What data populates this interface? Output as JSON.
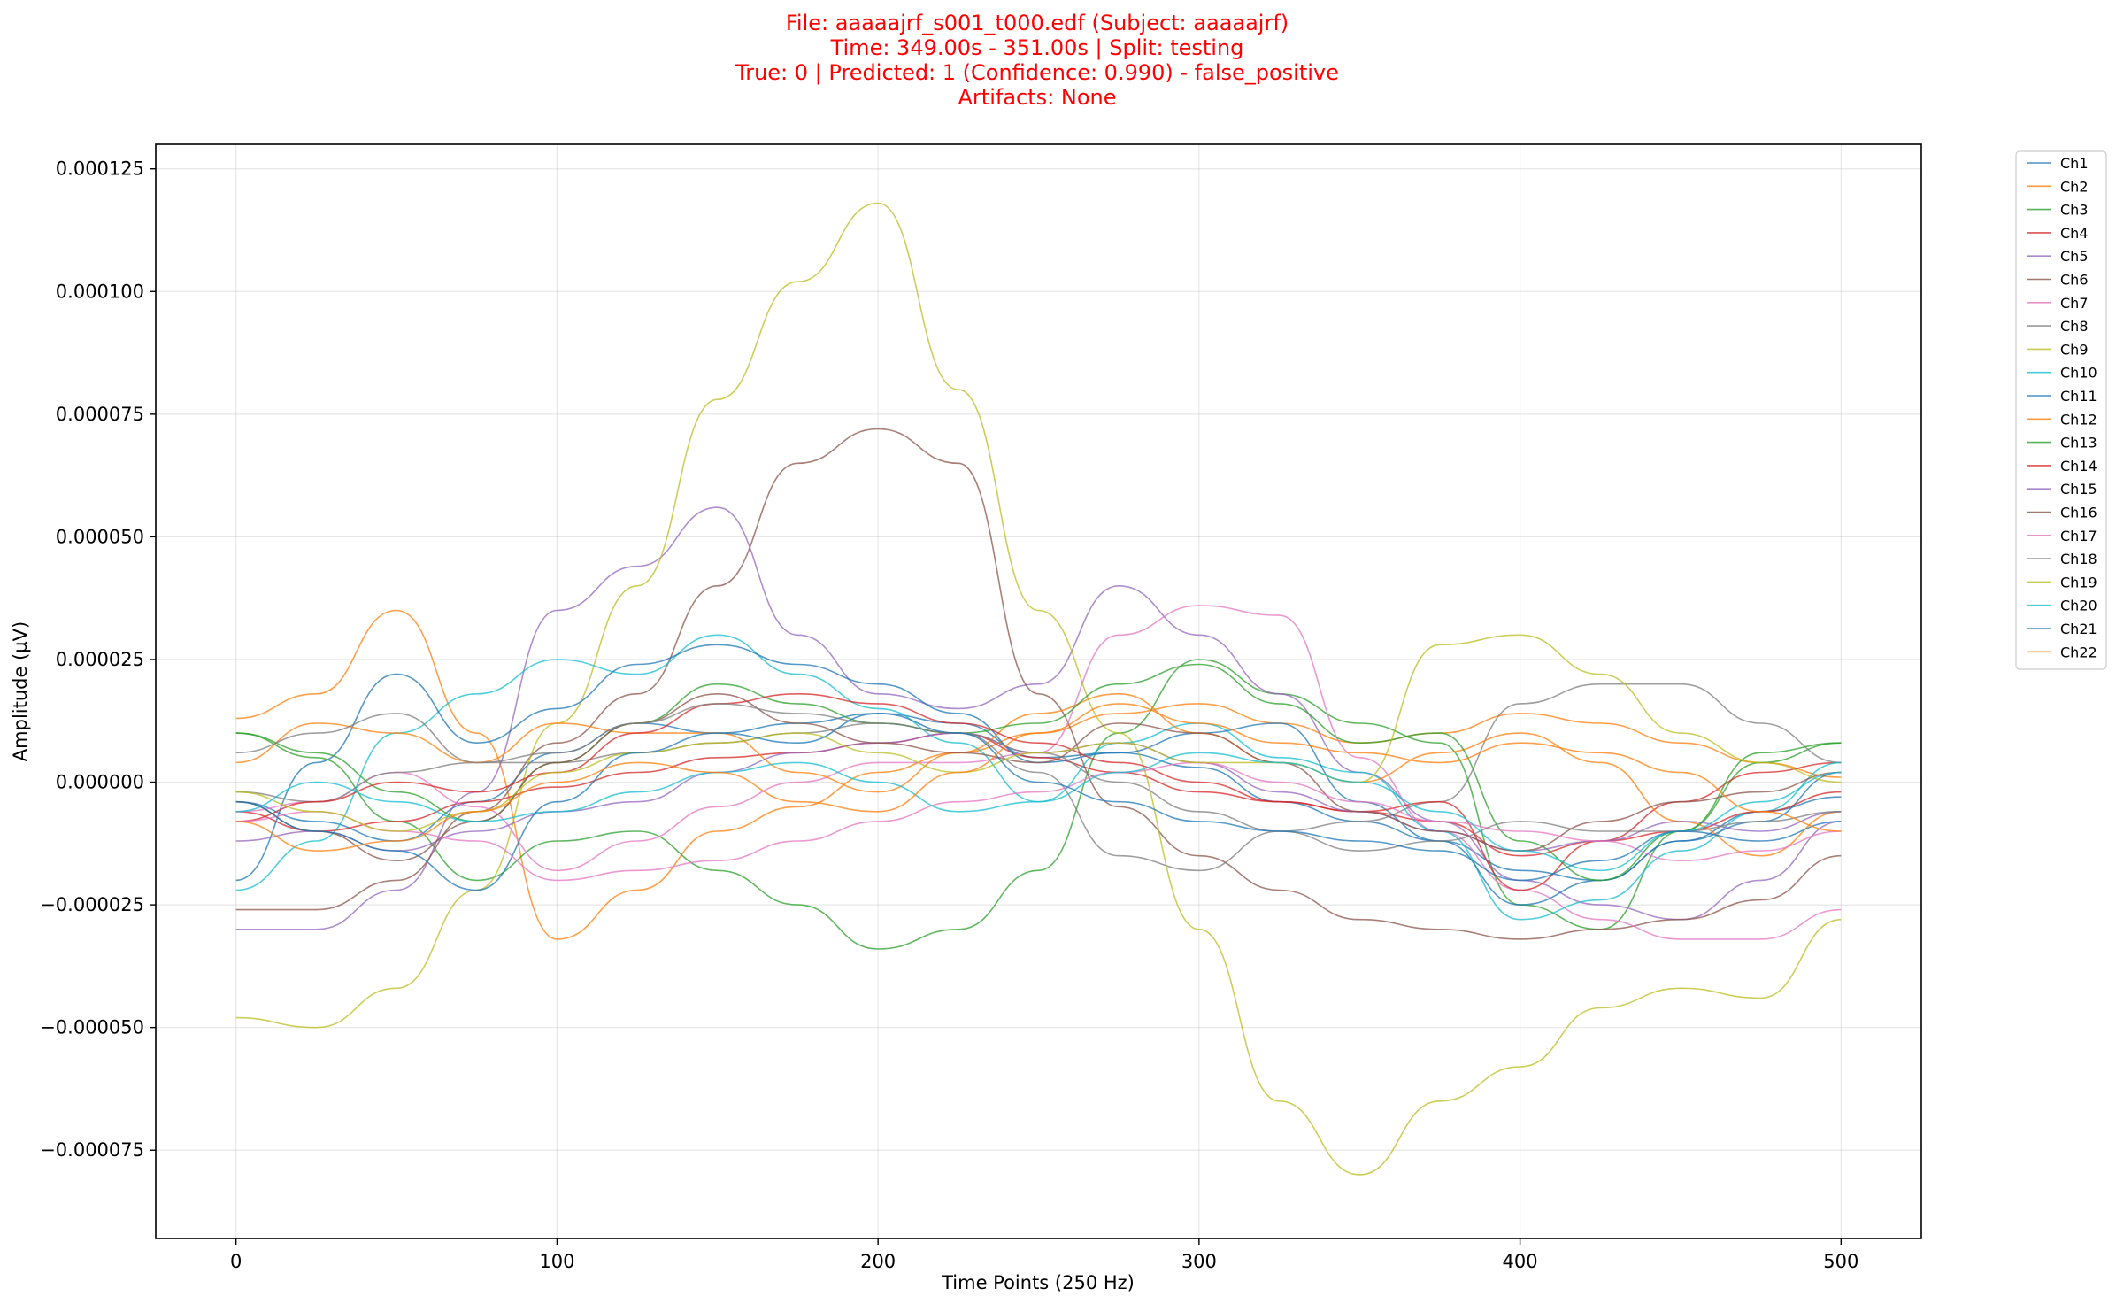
{
  "chart_data": {
    "type": "line",
    "title_lines": [
      "File: aaaaajrf_s001_t000.edf (Subject: aaaaajrf)",
      "Time: 349.00s - 351.00s | Split: testing",
      "True: 0 | Predicted: 1 (Confidence: 0.990) - false_positive",
      "Artifacts: None"
    ],
    "title_color": "#ff0000",
    "xlabel": "Time Points (250 Hz)",
    "ylabel": "Amplitude (µV)",
    "xlim": [
      -25,
      525
    ],
    "ylim": [
      -9.3e-05,
      0.00013
    ],
    "xticks": [
      0,
      100,
      200,
      300,
      400,
      500
    ],
    "xtick_labels": [
      "0",
      "100",
      "200",
      "300",
      "400",
      "500"
    ],
    "yticks": [
      -7.5e-05,
      -5e-05,
      -2.5e-05,
      0,
      2.5e-05,
      5e-05,
      7.5e-05,
      0.0001,
      0.000125
    ],
    "ytick_labels": [
      "−0.000075",
      "−0.000050",
      "−0.000025",
      "0.000000",
      "0.000025",
      "0.000050",
      "0.000075",
      "0.000100",
      "0.000125"
    ],
    "grid": true,
    "legend_position": "outside-top-right",
    "x": [
      0,
      25,
      50,
      75,
      100,
      125,
      150,
      175,
      200,
      225,
      250,
      275,
      300,
      325,
      350,
      375,
      400,
      425,
      450,
      475,
      500
    ],
    "series": [
      {
        "name": "Ch1",
        "color": "#1f77b4",
        "values": [
          -4e-06,
          -8e-06,
          -1.2e-05,
          -4e-06,
          6e-06,
          1.2e-05,
          1e-05,
          1.2e-05,
          1.4e-05,
          1.2e-05,
          5e-06,
          6e-06,
          3e-06,
          -4e-06,
          -8e-06,
          -1.2e-05,
          -1.8e-05,
          -2e-05,
          -1.2e-05,
          -6e-06,
          -3e-06
        ]
      },
      {
        "name": "Ch2",
        "color": "#ff7f0e",
        "values": [
          1.3e-05,
          1.8e-05,
          3.5e-05,
          1e-05,
          -3.2e-05,
          -2.2e-05,
          -1e-05,
          -5e-06,
          2e-06,
          6e-06,
          1e-05,
          1.4e-05,
          1.6e-05,
          1.2e-05,
          8e-06,
          1e-05,
          1.4e-05,
          1.2e-05,
          8e-06,
          4e-06,
          1e-06
        ]
      },
      {
        "name": "Ch3",
        "color": "#2ca02c",
        "values": [
          1e-05,
          5e-06,
          -8e-06,
          -2e-05,
          -1.2e-05,
          -1e-05,
          -1.8e-05,
          -2.5e-05,
          -3.4e-05,
          -3e-05,
          -1.8e-05,
          1e-05,
          2.5e-05,
          1.8e-05,
          1.2e-05,
          8e-06,
          -2.5e-05,
          -3e-05,
          -1e-05,
          4e-06,
          8e-06
        ]
      },
      {
        "name": "Ch4",
        "color": "#d62728",
        "values": [
          -6e-06,
          -1e-05,
          -8e-06,
          -4e-06,
          -1e-06,
          2e-06,
          5e-06,
          6e-06,
          8e-06,
          1e-05,
          5e-06,
          2e-06,
          -2e-06,
          -4e-06,
          -6e-06,
          -8e-06,
          -1.5e-05,
          -1.2e-05,
          -4e-06,
          2e-06,
          4e-06
        ]
      },
      {
        "name": "Ch5",
        "color": "#9467bd",
        "values": [
          -3e-05,
          -3e-05,
          -2.2e-05,
          -2e-06,
          3.5e-05,
          4.4e-05,
          5.6e-05,
          3e-05,
          1.8e-05,
          1.5e-05,
          2e-05,
          4e-05,
          3e-05,
          1.8e-05,
          2e-06,
          -8e-06,
          -2e-05,
          -2.5e-05,
          -2.8e-05,
          -2e-05,
          -8e-06
        ]
      },
      {
        "name": "Ch6",
        "color": "#8c564b",
        "values": [
          -2.6e-05,
          -2.6e-05,
          -2e-05,
          -6e-06,
          8e-06,
          1.8e-05,
          4e-05,
          6.5e-05,
          7.2e-05,
          6.5e-05,
          1.8e-05,
          -5e-06,
          -1.5e-05,
          -2.2e-05,
          -2.8e-05,
          -3e-05,
          -3.2e-05,
          -3e-05,
          -2.8e-05,
          -2.4e-05,
          -1.5e-05
        ]
      },
      {
        "name": "Ch7",
        "color": "#e377c2",
        "values": [
          -6e-06,
          -4e-06,
          2e-06,
          -5e-06,
          -1.8e-05,
          -1.2e-05,
          -5e-06,
          0.0,
          4e-06,
          4e-06,
          6e-06,
          3e-05,
          3.6e-05,
          3.4e-05,
          5e-06,
          -1e-05,
          -2.2e-05,
          -2.8e-05,
          -3.2e-05,
          -3.2e-05,
          -2.6e-05
        ]
      },
      {
        "name": "Ch8",
        "color": "#7f7f7f",
        "values": [
          -2e-06,
          -4e-06,
          2e-06,
          4e-06,
          4e-06,
          6e-06,
          8e-06,
          1e-05,
          1.2e-05,
          1e-05,
          2e-06,
          -1.5e-05,
          -1.8e-05,
          -1e-05,
          -8e-06,
          -4e-06,
          1.6e-05,
          2e-05,
          2e-05,
          1.2e-05,
          4e-06
        ]
      },
      {
        "name": "Ch9",
        "color": "#bcbd22",
        "values": [
          -4.8e-05,
          -5e-05,
          -4.2e-05,
          -2.2e-05,
          1.2e-05,
          4e-05,
          7.8e-05,
          0.000102,
          0.000118,
          8e-05,
          3.5e-05,
          1e-05,
          -3e-05,
          -6.5e-05,
          -8e-05,
          -6.5e-05,
          -5.8e-05,
          -4.6e-05,
          -4.2e-05,
          -4.4e-05,
          -2.8e-05
        ]
      },
      {
        "name": "Ch10",
        "color": "#17becf",
        "values": [
          -2.2e-05,
          -1.2e-05,
          1e-05,
          1.8e-05,
          2.5e-05,
          2.2e-05,
          3e-05,
          2.2e-05,
          1.5e-05,
          8e-06,
          -4e-06,
          8e-06,
          1.2e-05,
          5e-06,
          2e-06,
          -1e-05,
          -2.8e-05,
          -2.4e-05,
          -1.4e-05,
          -6e-06,
          4e-06
        ]
      },
      {
        "name": "Ch11",
        "color": "#1f77b4",
        "values": [
          -2e-05,
          4e-06,
          2.2e-05,
          8e-06,
          1.5e-05,
          2.4e-05,
          2.8e-05,
          2.4e-05,
          2e-05,
          1.4e-05,
          4e-06,
          6e-06,
          1e-05,
          1.2e-05,
          -4e-06,
          -1.2e-05,
          -2.5e-05,
          -2e-05,
          -1.2e-05,
          -8e-06,
          2e-06
        ]
      },
      {
        "name": "Ch12",
        "color": "#ff7f0e",
        "values": [
          4e-06,
          1.2e-05,
          1e-05,
          4e-06,
          1.2e-05,
          1e-05,
          1e-05,
          2e-06,
          -2e-06,
          6e-06,
          1.4e-05,
          1.8e-05,
          1e-05,
          4e-06,
          0.0,
          6e-06,
          1e-05,
          4e-06,
          -8e-06,
          -1.5e-05,
          -6e-06
        ]
      },
      {
        "name": "Ch13",
        "color": "#2ca02c",
        "values": [
          1e-05,
          6e-06,
          -2e-06,
          -8e-06,
          4e-06,
          1.2e-05,
          2e-05,
          1.6e-05,
          1.2e-05,
          1e-05,
          1.2e-05,
          2e-05,
          2.4e-05,
          1.6e-05,
          8e-06,
          1e-05,
          -1.2e-05,
          -2e-05,
          -1e-05,
          6e-06,
          8e-06
        ]
      },
      {
        "name": "Ch14",
        "color": "#d62728",
        "values": [
          -8e-06,
          -4e-06,
          0.0,
          -2e-06,
          2e-06,
          1e-05,
          1.6e-05,
          1.8e-05,
          1.6e-05,
          1.2e-05,
          8e-06,
          4e-06,
          0.0,
          -4e-06,
          -6e-06,
          -4e-06,
          -2.2e-05,
          -1.2e-05,
          -1e-05,
          -6e-06,
          -2e-06
        ]
      },
      {
        "name": "Ch15",
        "color": "#9467bd",
        "values": [
          -1.2e-05,
          -1e-05,
          -1.4e-05,
          -1e-05,
          -6e-06,
          -4e-06,
          2e-06,
          6e-06,
          8e-06,
          1e-05,
          6e-06,
          8e-06,
          4e-06,
          -2e-06,
          -6e-06,
          -1e-05,
          -1.4e-05,
          -1.2e-05,
          -8e-06,
          -1e-05,
          -6e-06
        ]
      },
      {
        "name": "Ch16",
        "color": "#8c564b",
        "values": [
          -4e-06,
          -1e-05,
          -1.6e-05,
          -8e-06,
          4e-06,
          1.2e-05,
          1.8e-05,
          1.2e-05,
          8e-06,
          6e-06,
          4e-06,
          1.2e-05,
          1e-05,
          4e-06,
          -6e-06,
          -1e-05,
          -1.4e-05,
          -8e-06,
          -4e-06,
          -2e-06,
          2e-06
        ]
      },
      {
        "name": "Ch17",
        "color": "#e377c2",
        "values": [
          -8e-06,
          -6e-06,
          -1e-05,
          -1.2e-05,
          -2e-05,
          -1.8e-05,
          -1.6e-05,
          -1.2e-05,
          -8e-06,
          -4e-06,
          -2e-06,
          2e-06,
          4e-06,
          0.0,
          -4e-06,
          -8e-06,
          -1e-05,
          -1.2e-05,
          -1.6e-05,
          -1.4e-05,
          -1e-05
        ]
      },
      {
        "name": "Ch18",
        "color": "#7f7f7f",
        "values": [
          6e-06,
          1e-05,
          1.4e-05,
          4e-06,
          6e-06,
          1.2e-05,
          1.6e-05,
          1.4e-05,
          1.2e-05,
          1e-05,
          6e-06,
          0.0,
          -6e-06,
          -1e-05,
          -1.4e-05,
          -1.2e-05,
          -8e-06,
          -1e-05,
          -1e-05,
          -8e-06,
          -6e-06
        ]
      },
      {
        "name": "Ch19",
        "color": "#bcbd22",
        "values": [
          -2e-06,
          -6e-06,
          -1e-05,
          -6e-06,
          2e-06,
          6e-06,
          8e-06,
          1e-05,
          6e-06,
          2e-06,
          6e-06,
          8e-06,
          4e-06,
          4e-06,
          0.0,
          2.8e-05,
          3e-05,
          2.2e-05,
          1e-05,
          4e-06,
          0.0
        ]
      },
      {
        "name": "Ch20",
        "color": "#17becf",
        "values": [
          -6e-06,
          0.0,
          -4e-06,
          -8e-06,
          -6e-06,
          -2e-06,
          2e-06,
          4e-06,
          0.0,
          -6e-06,
          -4e-06,
          2e-06,
          6e-06,
          4e-06,
          0.0,
          -6e-06,
          -1.4e-05,
          -1.8e-05,
          -1e-05,
          -4e-06,
          2e-06
        ]
      },
      {
        "name": "Ch21",
        "color": "#1f77b4",
        "values": [
          -4e-06,
          -1e-05,
          -1.4e-05,
          -2.2e-05,
          -4e-06,
          6e-06,
          1e-05,
          8e-06,
          1.4e-05,
          1e-05,
          0.0,
          -4e-06,
          -8e-06,
          -1e-05,
          -1.2e-05,
          -1.4e-05,
          -2e-05,
          -1.6e-05,
          -1e-05,
          -1.2e-05,
          -8e-06
        ]
      },
      {
        "name": "Ch22",
        "color": "#ff7f0e",
        "values": [
          -8e-06,
          -1.4e-05,
          -1.2e-05,
          -6e-06,
          0.0,
          4e-06,
          2e-06,
          -4e-06,
          -6e-06,
          2e-06,
          1e-05,
          1.6e-05,
          1.2e-05,
          8e-06,
          6e-06,
          4e-06,
          8e-06,
          6e-06,
          2e-06,
          -6e-06,
          -1e-05
        ]
      }
    ]
  }
}
